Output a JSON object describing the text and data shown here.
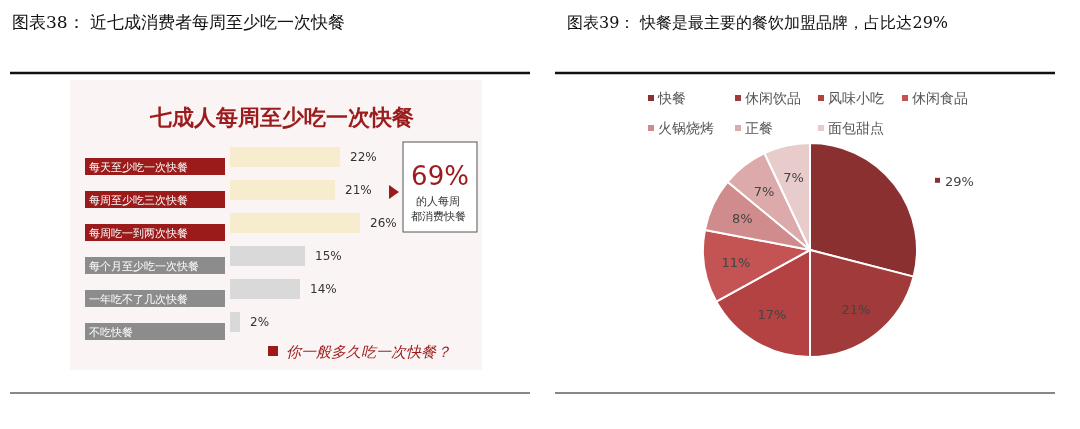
{
  "chart_data": [
    {
      "type": "bar",
      "orientation": "horizontal",
      "title": "图表38：  近七成消费者每周至少吃一次快餐",
      "subtitle": "七成人每周至少吃一次快餐",
      "categories": [
        "每天至少吃一次快餐",
        "每周至少吃三次快餐",
        "每周吃一到两次快餐",
        "每个月至少吃一次快餐",
        "一年吃不了几次快餐",
        "不吃快餐"
      ],
      "values": [
        22,
        21,
        26,
        15,
        14,
        2
      ],
      "colors": [
        "#f8eccf",
        "#f8eccf",
        "#f8eccf",
        "#d9d9d9",
        "#d9d9d9",
        "#d9d9d9"
      ],
      "value_labels": [
        "22%",
        "21%",
        "26%",
        "15%",
        "14%",
        "2%"
      ],
      "annotations": [
        "69%",
        "的人每周都消费快餐",
        "你一般多久吃一次快餐？"
      ]
    },
    {
      "type": "pie",
      "title": "图表39：  快餐是最主要的餐饮加盟品牌，占比达29%",
      "categories": [
        "快餐",
        "休闲饮品",
        "风味小吃",
        "休闲食品",
        "火锅烧烤",
        "正餐",
        "面包甜点"
      ],
      "values": [
        29,
        21,
        17,
        11,
        8,
        7,
        7
      ],
      "colors": [
        "#8b3030",
        "#a13a3a",
        "#b44242",
        "#c45454",
        "#d08c8c",
        "#dcaaaa",
        "#e8cccc"
      ],
      "value_labels": [
        "29%",
        "21%",
        "17%",
        "11%",
        "8%",
        "7%",
        "7%"
      ],
      "legend": "top"
    }
  ]
}
